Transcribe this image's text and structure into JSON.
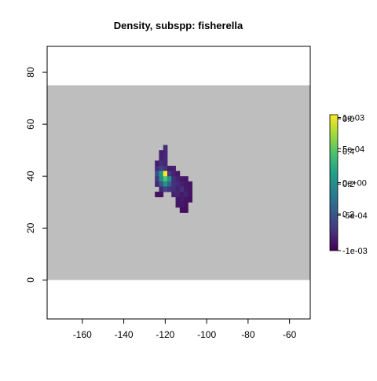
{
  "chart_data": {
    "type": "heatmap",
    "title": "Density, subspp: fisherella",
    "xlabel": "",
    "ylabel": "",
    "xlim": [
      -177,
      -50
    ],
    "ylim": [
      -15,
      90
    ],
    "x_ticks": [
      -160,
      -140,
      -120,
      -100,
      -80,
      -60
    ],
    "y_ticks": [
      0,
      20,
      40,
      60,
      80
    ],
    "x_tick_labels": [
      "-160",
      "-140",
      "-120",
      "-100",
      "-80",
      "-60"
    ],
    "y_tick_labels": [
      "0",
      "20",
      "40",
      "60",
      "80"
    ],
    "background_region": {
      "x": [
        -177,
        -50
      ],
      "y": [
        0,
        75
      ],
      "color": "#BEBEBE"
    },
    "grid": false,
    "cell_size": 2,
    "colormap": [
      "#440154",
      "#46327E",
      "#365C8D",
      "#277F8E",
      "#1FA187",
      "#4AC16D",
      "#A0DA39",
      "#FDE725"
    ],
    "value_range": [
      -0.001,
      0.001
    ],
    "cells": [
      {
        "x": -120,
        "y": 51,
        "v": -0.00075
      },
      {
        "x": -122,
        "y": 49,
        "v": -0.00082
      },
      {
        "x": -120,
        "y": 49,
        "v": -0.00078
      },
      {
        "x": -122,
        "y": 47,
        "v": -0.0008
      },
      {
        "x": -120,
        "y": 47,
        "v": -0.00076
      },
      {
        "x": -124,
        "y": 45,
        "v": -0.00082
      },
      {
        "x": -122,
        "y": 45,
        "v": -0.00074
      },
      {
        "x": -120,
        "y": 45,
        "v": -0.00078
      },
      {
        "x": -124,
        "y": 43,
        "v": -0.00075
      },
      {
        "x": -122,
        "y": 43,
        "v": -0.00058
      },
      {
        "x": -120,
        "y": 43,
        "v": -0.0007
      },
      {
        "x": -118,
        "y": 43,
        "v": -0.00085
      },
      {
        "x": -116,
        "y": 43,
        "v": -0.00082
      },
      {
        "x": -124,
        "y": 41,
        "v": -0.0005
      },
      {
        "x": -122,
        "y": 41,
        "v": 4e-05
      },
      {
        "x": -120,
        "y": 41,
        "v": 0.001
      },
      {
        "x": -118,
        "y": 41,
        "v": -0.00066
      },
      {
        "x": -116,
        "y": 41,
        "v": -0.0008
      },
      {
        "x": -114,
        "y": 41,
        "v": -0.00086
      },
      {
        "x": -124,
        "y": 39,
        "v": -0.00065
      },
      {
        "x": -122,
        "y": 39,
        "v": -2e-05
      },
      {
        "x": -120,
        "y": 39,
        "v": 0.00044
      },
      {
        "x": -118,
        "y": 39,
        "v": 0.0
      },
      {
        "x": -116,
        "y": 39,
        "v": -0.00074
      },
      {
        "x": -114,
        "y": 39,
        "v": -0.0008
      },
      {
        "x": -112,
        "y": 39,
        "v": -0.00086
      },
      {
        "x": -110,
        "y": 39,
        "v": -0.00088
      },
      {
        "x": -124,
        "y": 37,
        "v": -0.00078
      },
      {
        "x": -122,
        "y": 37,
        "v": -0.00046
      },
      {
        "x": -120,
        "y": 37,
        "v": 2e-05
      },
      {
        "x": -118,
        "y": 37,
        "v": -0.00036
      },
      {
        "x": -116,
        "y": 37,
        "v": -0.00072
      },
      {
        "x": -114,
        "y": 37,
        "v": -0.00076
      },
      {
        "x": -112,
        "y": 37,
        "v": -0.00082
      },
      {
        "x": -110,
        "y": 37,
        "v": -0.00086
      },
      {
        "x": -108,
        "y": 37,
        "v": -0.00088
      },
      {
        "x": -122,
        "y": 35,
        "v": -0.00078
      },
      {
        "x": -120,
        "y": 35,
        "v": -0.0006
      },
      {
        "x": -118,
        "y": 35,
        "v": -0.0007
      },
      {
        "x": -116,
        "y": 35,
        "v": -0.00074
      },
      {
        "x": -114,
        "y": 35,
        "v": -0.0008
      },
      {
        "x": -112,
        "y": 35,
        "v": -0.00072
      },
      {
        "x": -110,
        "y": 35,
        "v": -0.00084
      },
      {
        "x": -108,
        "y": 35,
        "v": -0.00088
      },
      {
        "x": -124,
        "y": 33,
        "v": -0.0009
      },
      {
        "x": -122,
        "y": 33,
        "v": -0.0009
      },
      {
        "x": -116,
        "y": 33,
        "v": -0.0008
      },
      {
        "x": -114,
        "y": 33,
        "v": -0.00078
      },
      {
        "x": -112,
        "y": 33,
        "v": -0.00084
      },
      {
        "x": -110,
        "y": 33,
        "v": -0.0008
      },
      {
        "x": -108,
        "y": 33,
        "v": -0.00088
      },
      {
        "x": -114,
        "y": 31,
        "v": -0.00086
      },
      {
        "x": -112,
        "y": 31,
        "v": -0.00084
      },
      {
        "x": -110,
        "y": 31,
        "v": -0.00088
      },
      {
        "x": -108,
        "y": 31,
        "v": -0.0009
      },
      {
        "x": -114,
        "y": 29,
        "v": -0.00088
      },
      {
        "x": -112,
        "y": 29,
        "v": -0.00086
      },
      {
        "x": -110,
        "y": 29,
        "v": -0.0009
      },
      {
        "x": -112,
        "y": 27,
        "v": -0.00092
      },
      {
        "x": -110,
        "y": 27,
        "v": -0.00092
      }
    ],
    "legend": {
      "placement": "right",
      "labels": [
        {
          "text": "1e-03",
          "v": 0.00096
        },
        {
          "text": "0.0",
          "v": 0.00094
        },
        {
          "text": "5e-04",
          "v": 0.0005
        },
        {
          "text": "0.4",
          "v": 0.00046
        },
        {
          "text": "0e+00",
          "v": 0.0
        },
        {
          "text": "0.2",
          "v": -2e-05
        },
        {
          "text": "-5e-04",
          "v": -0.00048
        },
        {
          "text": "0.2",
          "v": -0.00046
        },
        {
          "text": "-1e-03",
          "v": -0.001
        }
      ]
    }
  }
}
